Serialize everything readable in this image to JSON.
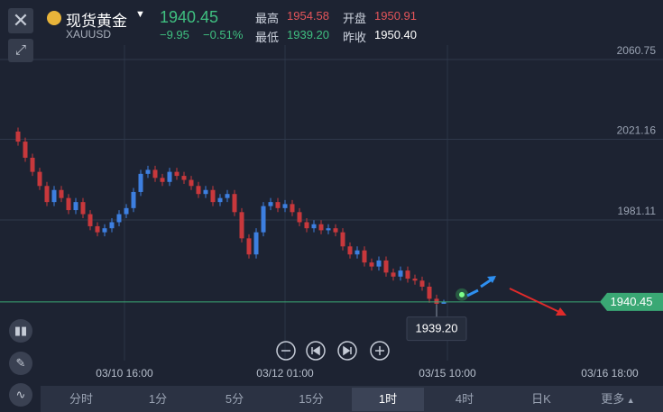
{
  "header": {
    "name": "现货黄金",
    "symbol": "XAUUSD",
    "price": "1940.45",
    "change": "−9.95",
    "change_pct": "−0.51%",
    "stats": [
      {
        "label": "最高",
        "value": "1954.58"
      },
      {
        "label": "开盘",
        "value": "1950.91"
      },
      {
        "label": "最低",
        "value": "1939.20"
      },
      {
        "label": "昨收",
        "value": "1950.40"
      }
    ]
  },
  "chart_data": {
    "type": "candlestick",
    "x_labels": [
      "03/10 16:00",
      "03/12 01:00",
      "03/15 10:00",
      "03/16 18:00"
    ],
    "open": [
      2025,
      2020,
      2012,
      2005,
      1998,
      1990,
      1996,
      1992,
      1986,
      1990,
      1984,
      1978,
      1975,
      1977,
      1980,
      1984,
      1987,
      1995,
      2004,
      2006,
      2002,
      2000,
      2005,
      2003,
      2001,
      1998,
      1994,
      1996,
      1990,
      1992,
      1994,
      1985,
      1972,
      1964,
      1975,
      1988,
      1990,
      1987,
      1989,
      1985,
      1980,
      1977,
      1979,
      1976,
      1977,
      1975,
      1968,
      1964,
      1966,
      1960,
      1958,
      1961,
      1955,
      1953,
      1956,
      1952,
      1951,
      1948,
      1942,
      1939.5
    ],
    "high": [
      2027,
      2022,
      2014,
      2007,
      2000,
      1998,
      1998,
      1994,
      1992,
      1992,
      1986,
      1980,
      1979,
      1982,
      1986,
      1989,
      1997,
      2006,
      2008,
      2008,
      2004,
      2007,
      2007,
      2005,
      2003,
      2000,
      1998,
      1998,
      1994,
      1996,
      1996,
      1987,
      1974,
      1977,
      1990,
      1992,
      1992,
      1991,
      1991,
      1987,
      1982,
      1981,
      1981,
      1979,
      1979,
      1977,
      1970,
      1968,
      1968,
      1962,
      1963,
      1963,
      1957,
      1958,
      1958,
      1954,
      1953,
      1950,
      1944,
      1941.5
    ],
    "low": [
      2018,
      2010,
      2003,
      1996,
      1988,
      1988,
      1990,
      1984,
      1984,
      1982,
      1976,
      1973,
      1973,
      1975,
      1978,
      1982,
      1985,
      1993,
      2002,
      2000,
      1998,
      1998,
      2001,
      1999,
      1996,
      1992,
      1992,
      1988,
      1988,
      1990,
      1983,
      1970,
      1962,
      1962,
      1973,
      1986,
      1985,
      1985,
      1983,
      1978,
      1975,
      1975,
      1974,
      1974,
      1973,
      1966,
      1962,
      1962,
      1958,
      1956,
      1956,
      1953,
      1951,
      1951,
      1950,
      1949,
      1946,
      1940,
      1939.2,
      1939.5
    ],
    "close": [
      2020,
      2012,
      2005,
      1998,
      1990,
      1996,
      1992,
      1986,
      1990,
      1984,
      1978,
      1975,
      1977,
      1980,
      1984,
      1987,
      1995,
      2004,
      2006,
      2002,
      2000,
      2005,
      2003,
      2001,
      1998,
      1994,
      1996,
      1990,
      1992,
      1994,
      1985,
      1972,
      1964,
      1975,
      1988,
      1990,
      1987,
      1989,
      1985,
      1980,
      1977,
      1979,
      1976,
      1977,
      1975,
      1968,
      1964,
      1966,
      1960,
      1958,
      1961,
      1955,
      1953,
      1956,
      1952,
      1951,
      1948,
      1942,
      1939.5,
      1940.45
    ],
    "up_color": "#3d7fe0",
    "down_color": "#c8383c",
    "ylim": [
      1911.3,
      2090.3
    ],
    "yticks": [
      1981.11,
      2021.16,
      2060.75
    ],
    "grid": true,
    "last_price": 1940.45,
    "last_price_color": "#3aa874",
    "low_marker": {
      "value": 1939.2,
      "label": "1939.20"
    }
  },
  "tabs": [
    "分时",
    "1分",
    "5分",
    "15分",
    "1时",
    "4时",
    "日K",
    "更多"
  ],
  "active_tab": 4
}
